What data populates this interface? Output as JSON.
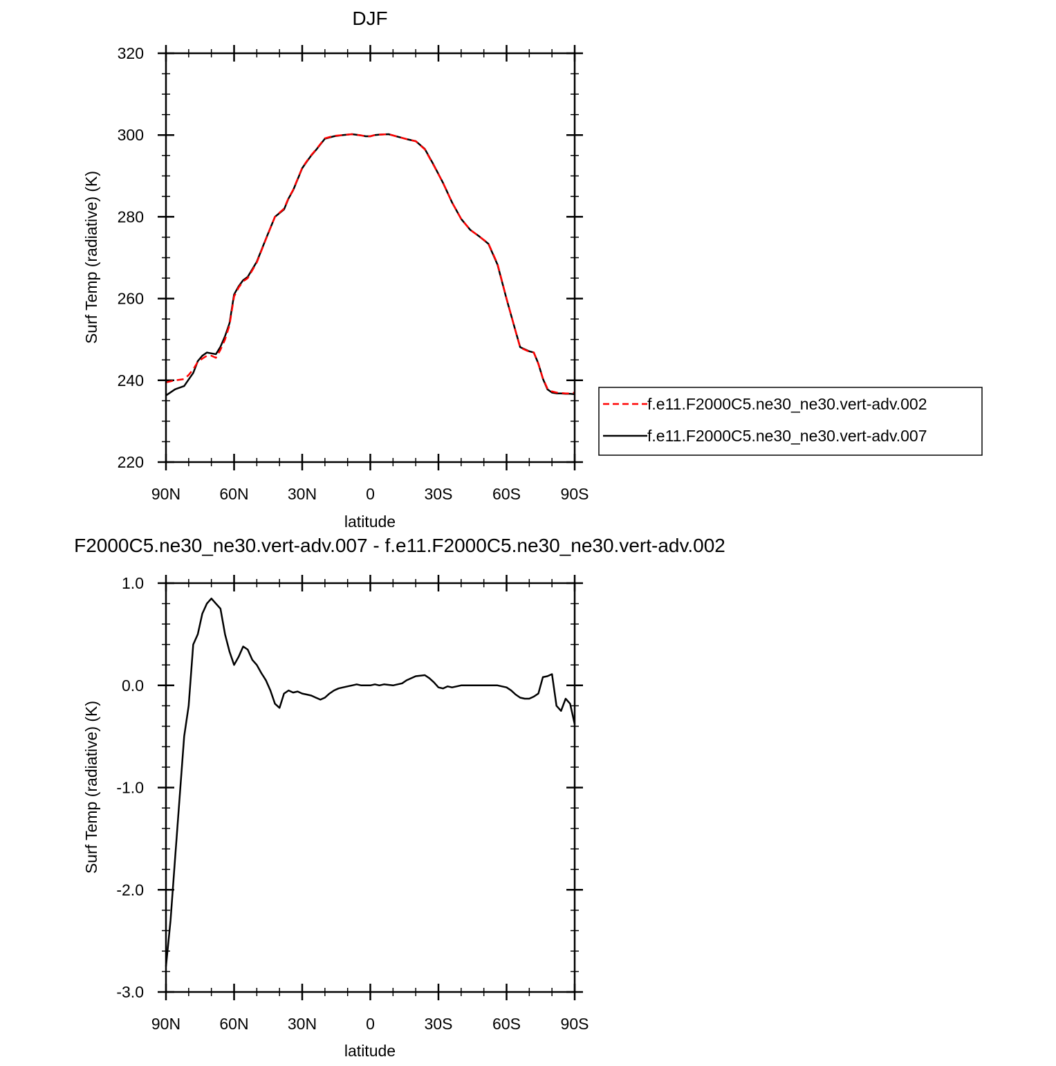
{
  "chart_data": [
    {
      "type": "line",
      "title": "DJF",
      "xlabel": "latitude",
      "ylabel": "Surf Temp (radiative) (K)",
      "x_direction": "90N to 90S (decreasing latitude)",
      "xlim": [
        90,
        -90
      ],
      "ylim": [
        220,
        320
      ],
      "x_ticks": [
        90,
        60,
        30,
        0,
        -30,
        -60,
        -90
      ],
      "x_tick_labels": [
        "90N",
        "60N",
        "30N",
        "0",
        "30S",
        "60S",
        "90S"
      ],
      "y_ticks": [
        220,
        240,
        260,
        280,
        300,
        320
      ],
      "y_tick_labels": [
        "220",
        "240",
        "260",
        "280",
        "300",
        "320"
      ],
      "legend_position": "right, outside plot",
      "series": [
        {
          "name": "f.e11.F2000C5.ne30_ne30.vert-adv.002",
          "color": "#ff0000",
          "dash": "dashed",
          "x": [
            90,
            86,
            82,
            80,
            78,
            76,
            74,
            72,
            70,
            68,
            66,
            64,
            62,
            60,
            58,
            56,
            54,
            50,
            46,
            42,
            38,
            36,
            34,
            30,
            28,
            26,
            24,
            20,
            16,
            12,
            8,
            4,
            2,
            0,
            -2,
            -4,
            -8,
            -12,
            -16,
            -20,
            -24,
            -28,
            -32,
            -36,
            -40,
            -44,
            -48,
            -52,
            -56,
            -60,
            -64,
            -66,
            -68,
            -70,
            -72,
            -74,
            -76,
            -78,
            -80,
            -82,
            -84,
            -86,
            -88,
            -90
          ],
          "y": [
            239.5,
            240,
            240.3,
            241.3,
            242.7,
            244.5,
            245.3,
            246.0,
            246.0,
            245.5,
            247.5,
            250.0,
            253.5,
            260.5,
            262.7,
            264.2,
            265.0,
            268.8,
            274.5,
            280.0,
            282.0,
            284.6,
            286.6,
            292.0,
            293.6,
            295.1,
            296.4,
            299.2,
            299.8,
            300.0,
            300.2,
            299.9,
            299.7,
            299.7,
            300.0,
            300.1,
            300.2,
            299.6,
            299.0,
            298.5,
            296.5,
            292.5,
            288.3,
            283.5,
            279.5,
            276.8,
            275.2,
            273.5,
            268.5,
            260.0,
            252.0,
            248.0,
            247.5,
            247.0,
            246.8,
            244.0,
            240.5,
            238.0,
            237.3,
            237.0,
            236.9,
            236.8,
            236.8,
            237.0
          ]
        },
        {
          "name": "f.e11.F2000C5.ne30_ne30.vert-adv.007",
          "color": "#000000",
          "dash": "solid",
          "x": [
            90,
            86,
            82,
            80,
            78,
            76,
            74,
            72,
            70,
            68,
            66,
            64,
            62,
            60,
            58,
            56,
            54,
            50,
            46,
            42,
            38,
            36,
            34,
            30,
            28,
            26,
            24,
            20,
            16,
            12,
            8,
            4,
            2,
            0,
            -2,
            -4,
            -8,
            -12,
            -16,
            -20,
            -24,
            -28,
            -32,
            -36,
            -40,
            -44,
            -48,
            -52,
            -56,
            -60,
            -64,
            -66,
            -68,
            -70,
            -72,
            -74,
            -76,
            -78,
            -80,
            -82,
            -84,
            -86,
            -88,
            -90
          ],
          "y": [
            236.3,
            237.8,
            238.6,
            240.2,
            241.8,
            244.7,
            246.0,
            246.8,
            246.6,
            246.4,
            248.2,
            250.8,
            254.0,
            261.0,
            263.0,
            264.5,
            265.3,
            269.0,
            274.6,
            280.0,
            281.8,
            284.5,
            286.5,
            291.9,
            293.5,
            295.0,
            296.3,
            299.1,
            299.7,
            300.0,
            300.2,
            299.9,
            299.7,
            299.7,
            300.0,
            300.1,
            300.2,
            299.6,
            299.0,
            298.5,
            296.6,
            292.6,
            288.3,
            283.5,
            279.5,
            276.8,
            275.2,
            273.4,
            268.3,
            259.9,
            252.0,
            248.1,
            247.6,
            247.1,
            246.8,
            244.1,
            240.4,
            237.8,
            237.0,
            236.8,
            236.8,
            236.7,
            236.7,
            236.6
          ]
        }
      ]
    },
    {
      "type": "line",
      "title": "F2000C5.ne30_ne30.vert-adv.007 - f.e11.F2000C5.ne30_ne30.vert-adv.002",
      "xlabel": "latitude",
      "ylabel": "Surf Temp (radiative) (K)",
      "xlim": [
        90,
        -90
      ],
      "ylim": [
        -3.0,
        1.0
      ],
      "x_ticks": [
        90,
        60,
        30,
        0,
        -30,
        -60,
        -90
      ],
      "x_tick_labels": [
        "90N",
        "60N",
        "30N",
        "0",
        "30S",
        "60S",
        "90S"
      ],
      "y_ticks": [
        1.0,
        0.0,
        -1.0,
        -2.0,
        -3.0
      ],
      "y_tick_labels": [
        "1.0",
        "0.0",
        "-1.0",
        "-2.0",
        "-3.0"
      ],
      "series": [
        {
          "color": "#000000",
          "dash": "solid",
          "x": [
            90,
            88,
            86,
            84,
            82,
            80,
            78,
            76,
            74,
            72,
            70,
            68,
            66,
            64,
            62,
            60,
            58,
            56,
            54,
            52,
            50,
            48,
            46,
            44,
            42,
            40,
            38,
            36,
            34,
            32,
            30,
            28,
            26,
            24,
            22,
            20,
            18,
            16,
            14,
            12,
            10,
            8,
            6,
            4,
            2,
            0,
            -2,
            -4,
            -6,
            -10,
            -14,
            -16,
            -20,
            -24,
            -26,
            -28,
            -30,
            -32,
            -34,
            -36,
            -40,
            -44,
            -50,
            -56,
            -60,
            -62,
            -64,
            -66,
            -68,
            -70,
            -72,
            -74,
            -76,
            -78,
            -80,
            -82,
            -84,
            -86,
            -88,
            -90
          ],
          "y": [
            -2.75,
            -2.3,
            -1.7,
            -1.1,
            -0.5,
            -0.2,
            0.4,
            0.5,
            0.7,
            0.8,
            0.85,
            0.8,
            0.75,
            0.5,
            0.33,
            0.2,
            0.28,
            0.38,
            0.35,
            0.25,
            0.2,
            0.12,
            0.05,
            -0.05,
            -0.18,
            -0.22,
            -0.08,
            -0.05,
            -0.07,
            -0.06,
            -0.08,
            -0.09,
            -0.1,
            -0.12,
            -0.14,
            -0.12,
            -0.08,
            -0.05,
            -0.03,
            -0.02,
            -0.01,
            0.0,
            0.01,
            0.0,
            0.0,
            0.0,
            0.01,
            0.0,
            0.01,
            0.0,
            0.02,
            0.05,
            0.09,
            0.1,
            0.07,
            0.03,
            -0.02,
            -0.03,
            -0.01,
            -0.02,
            0.0,
            0.0,
            0.0,
            0.0,
            -0.02,
            -0.05,
            -0.09,
            -0.12,
            -0.13,
            -0.13,
            -0.11,
            -0.08,
            0.08,
            0.09,
            0.11,
            -0.2,
            -0.25,
            -0.13,
            -0.18,
            -0.38
          ]
        }
      ]
    }
  ]
}
